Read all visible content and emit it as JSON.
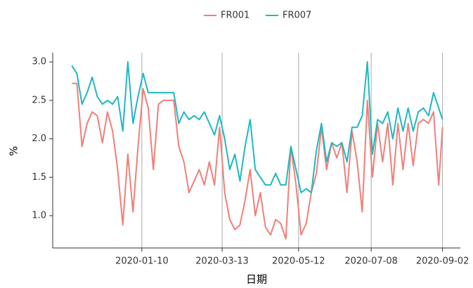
{
  "chart_data": {
    "type": "line",
    "x": [
      "2019-11-16",
      "2019-11-20",
      "2019-11-24",
      "2019-11-28",
      "2019-12-02",
      "2019-12-06",
      "2019-12-10",
      "2019-12-14",
      "2019-12-18",
      "2019-12-22",
      "2019-12-26",
      "2019-12-30",
      "2020-01-03",
      "2020-01-07",
      "2020-01-11",
      "2020-01-15",
      "2020-01-19",
      "2020-01-23",
      "2020-01-27",
      "2020-01-31",
      "2020-02-04",
      "2020-02-08",
      "2020-02-12",
      "2020-02-16",
      "2020-02-20",
      "2020-02-24",
      "2020-02-28",
      "2020-03-03",
      "2020-03-07",
      "2020-03-11",
      "2020-03-15",
      "2020-03-19",
      "2020-03-23",
      "2020-03-27",
      "2020-03-31",
      "2020-04-04",
      "2020-04-08",
      "2020-04-12",
      "2020-04-16",
      "2020-04-20",
      "2020-04-24",
      "2020-04-28",
      "2020-05-02",
      "2020-05-06",
      "2020-05-10",
      "2020-05-14",
      "2020-05-18",
      "2020-05-22",
      "2020-05-26",
      "2020-05-30",
      "2020-06-03",
      "2020-06-07",
      "2020-06-11",
      "2020-06-15",
      "2020-06-19",
      "2020-06-23",
      "2020-06-27",
      "2020-07-01",
      "2020-07-05",
      "2020-07-09",
      "2020-07-13",
      "2020-07-17",
      "2020-07-21",
      "2020-07-25",
      "2020-07-29",
      "2020-08-02",
      "2020-08-06",
      "2020-08-10",
      "2020-08-14",
      "2020-08-18",
      "2020-08-22",
      "2020-08-26",
      "2020-08-30",
      "2020-09-02"
    ],
    "series": [
      {
        "name": "FR001",
        "color": "#f07f79",
        "values": [
          2.72,
          2.72,
          1.9,
          2.2,
          2.35,
          2.3,
          1.95,
          2.35,
          2.1,
          1.6,
          0.88,
          1.8,
          1.05,
          1.9,
          2.65,
          2.4,
          1.6,
          2.45,
          2.5,
          2.5,
          2.5,
          1.9,
          1.7,
          1.3,
          1.45,
          1.6,
          1.4,
          1.7,
          1.4,
          2.15,
          1.3,
          0.95,
          0.82,
          0.88,
          1.2,
          1.6,
          1.0,
          1.3,
          0.85,
          0.75,
          0.95,
          0.9,
          0.7,
          1.9,
          1.4,
          0.75,
          0.9,
          1.3,
          1.55,
          2.15,
          1.6,
          1.95,
          1.75,
          1.95,
          1.3,
          2.1,
          1.7,
          1.05,
          2.5,
          1.5,
          2.2,
          1.7,
          2.2,
          1.4,
          2.2,
          1.6,
          2.2,
          1.65,
          2.2,
          2.25,
          2.2,
          2.35,
          1.4,
          2.15
        ]
      },
      {
        "name": "FR007",
        "color": "#1fb8c0",
        "values": [
          2.95,
          2.85,
          2.45,
          2.6,
          2.8,
          2.55,
          2.45,
          2.5,
          2.45,
          2.55,
          2.1,
          3.0,
          2.2,
          2.55,
          2.85,
          2.6,
          2.6,
          2.6,
          2.6,
          2.6,
          2.6,
          2.2,
          2.35,
          2.25,
          2.3,
          2.25,
          2.35,
          2.2,
          2.05,
          2.3,
          2.0,
          1.6,
          1.8,
          1.45,
          1.9,
          2.25,
          1.6,
          1.5,
          1.4,
          1.4,
          1.55,
          1.4,
          1.4,
          1.9,
          1.6,
          1.3,
          1.35,
          1.3,
          1.85,
          2.2,
          1.7,
          1.95,
          1.9,
          1.95,
          1.7,
          2.15,
          2.15,
          2.3,
          3.0,
          1.8,
          2.25,
          2.2,
          2.35,
          2.0,
          2.4,
          2.1,
          2.4,
          2.1,
          2.35,
          2.4,
          2.3,
          2.6,
          2.4,
          2.25
        ]
      }
    ],
    "xlim": [
      "2019-11-01",
      "2020-09-16"
    ],
    "xticks": [
      "2020-01-10",
      "2020-03-13",
      "2020-05-12",
      "2020-07-08",
      "2020-09-02"
    ],
    "ylim": [
      0.58,
      3.12
    ],
    "yticks": [
      {
        "value": 1.0,
        "label": "1.0"
      },
      {
        "value": 1.5,
        "label": "1.5"
      },
      {
        "value": 2.0,
        "label": "2.0"
      },
      {
        "value": 2.5,
        "label": "2.5"
      },
      {
        "value": 3.0,
        "label": "3.0"
      }
    ],
    "xlabel": "日期",
    "ylabel": "%",
    "grid": "x",
    "legend": "top"
  }
}
